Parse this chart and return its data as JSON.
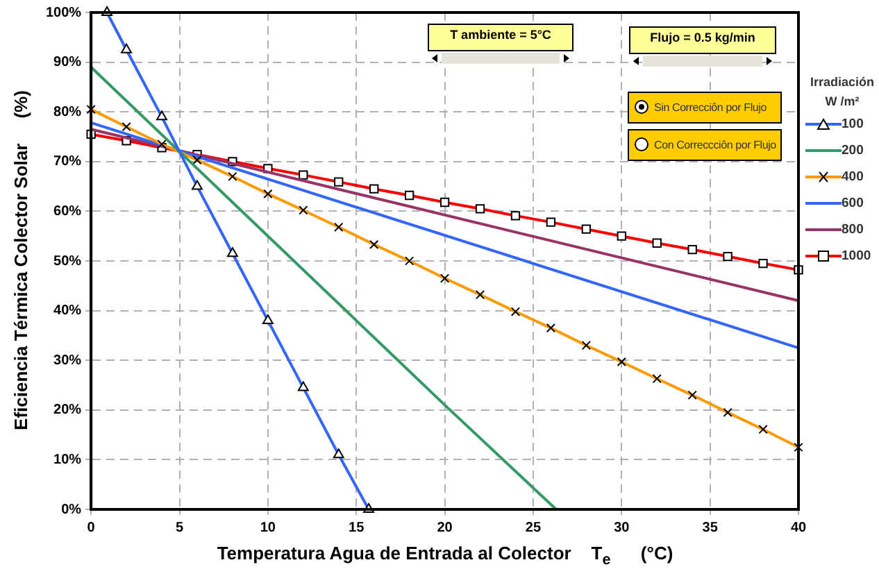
{
  "chart_data": {
    "type": "line",
    "xlabel": "Temperatura Agua de Entrada al Colector    T$_{e}$      (°C)",
    "ylabel": "Eficiencia Térmica Colector Solar     (%)",
    "legend_title": "Irradiación W /m²",
    "annotations": [
      "T ambiente = 5°C",
      "Flujo = 0.5 kg/min",
      "Sin Correcciôn por Flujo",
      "Con Correccciôn por Flujo"
    ],
    "xlim": [
      0,
      40
    ],
    "xticks": [
      0,
      5,
      10,
      15,
      20,
      25,
      30,
      35,
      40
    ],
    "ylim": [
      0,
      100
    ],
    "yticks": [
      {
        "value": 0,
        "label": "0%"
      },
      {
        "value": 10,
        "label": "10%"
      },
      {
        "value": 20,
        "label": "20%"
      },
      {
        "value": 30,
        "label": "30%"
      },
      {
        "value": 40,
        "label": "40%"
      },
      {
        "value": 50,
        "label": "50%"
      },
      {
        "value": 60,
        "label": "60%"
      },
      {
        "value": 70,
        "label": "70%"
      },
      {
        "value": 80,
        "label": "80%"
      },
      {
        "value": 90,
        "label": "90%"
      },
      {
        "value": 100,
        "label": "100%"
      }
    ],
    "grid": true,
    "legend": "right",
    "line_style": "solid",
    "series": [
      {
        "name": "100",
        "color": "#3366ff",
        "marker": "triangle",
        "x": [
          0.9,
          2,
          4,
          6,
          8,
          10,
          12,
          14,
          15.7
        ],
        "values": [
          100,
          92.5,
          79,
          65,
          51.5,
          38,
          24.5,
          11,
          0
        ]
      },
      {
        "name": "200",
        "color": "#339966",
        "marker": "none",
        "x": [
          0,
          10,
          20,
          26.3
        ],
        "values": [
          89,
          55,
          21,
          0
        ]
      },
      {
        "name": "400",
        "color": "#ff9900",
        "marker": "cross",
        "x": [
          0,
          2,
          4,
          6,
          8,
          10,
          12,
          14,
          16,
          18,
          20,
          22,
          24,
          26,
          28,
          30,
          32,
          34,
          36,
          38,
          40
        ],
        "values": [
          80.5,
          77,
          73.5,
          70.3,
          67,
          63.5,
          60.2,
          56.8,
          53.3,
          50,
          46.5,
          43.2,
          39.8,
          36.5,
          33,
          29.7,
          26.3,
          23,
          19.5,
          16.1,
          12.5
        ]
      },
      {
        "name": "600",
        "color": "#3366ff",
        "marker": "none",
        "x": [
          0,
          40
        ],
        "values": [
          77.8,
          32.5
        ]
      },
      {
        "name": "800",
        "color": "#993366",
        "marker": "none",
        "x": [
          0,
          40
        ],
        "values": [
          76.5,
          42
        ]
      },
      {
        "name": "1000",
        "color": "#ff0000",
        "marker": "square",
        "x": [
          0,
          2,
          4,
          6,
          8,
          10,
          12,
          14,
          16,
          18,
          20,
          22,
          24,
          26,
          28,
          30,
          32,
          34,
          36,
          38,
          40
        ],
        "values": [
          75.5,
          74.2,
          72.8,
          71.4,
          70,
          68.6,
          67.3,
          65.9,
          64.5,
          63.2,
          61.8,
          60.5,
          59.1,
          57.8,
          56.4,
          55,
          53.6,
          52.3,
          50.9,
          49.5,
          48.2
        ]
      }
    ]
  }
}
